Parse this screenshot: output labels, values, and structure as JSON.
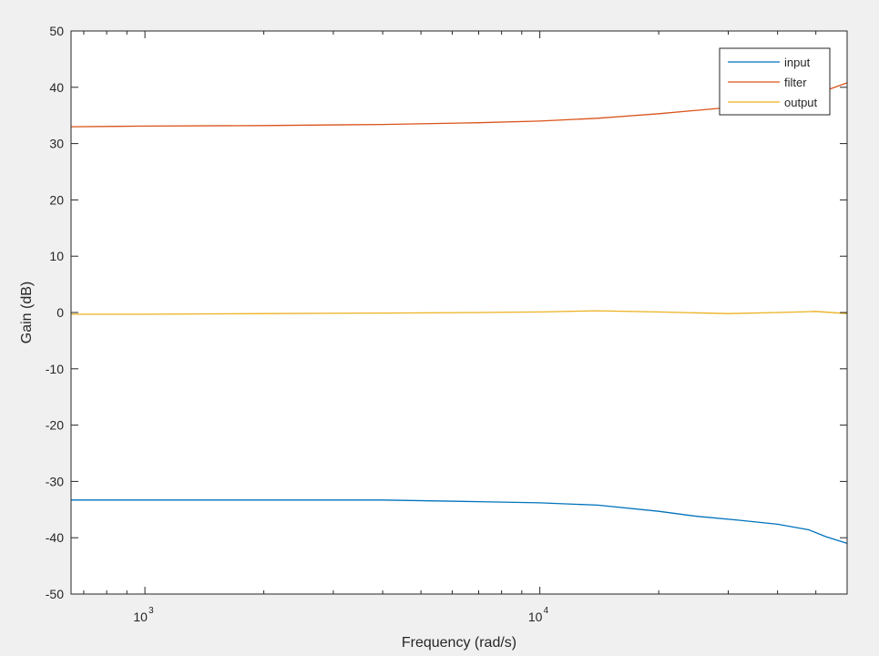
{
  "chart_data": {
    "type": "line",
    "xlabel": "Frequency (rad/s)",
    "ylabel": "Gain (dB)",
    "xscale": "log",
    "xlim": [
      650,
      60000
    ],
    "ylim": [
      -50,
      50
    ],
    "grid": false,
    "legend_position": "top-right",
    "yticks": [
      -50,
      -40,
      -30,
      -20,
      -10,
      0,
      10,
      20,
      30,
      40,
      50
    ],
    "ytick_labels": [
      "-50",
      "-40",
      "-30",
      "-20",
      "-10",
      "0",
      "10",
      "20",
      "30",
      "40",
      "50"
    ],
    "xticks": [
      {
        "value": 1000,
        "base": "10",
        "exponent": "3"
      },
      {
        "value": 10000,
        "base": "10",
        "exponent": "4"
      }
    ],
    "series": [
      {
        "name": "input",
        "color": "#0072bd",
        "points": [
          [
            650,
            -33.3
          ],
          [
            1000,
            -33.3
          ],
          [
            2000,
            -33.3
          ],
          [
            4000,
            -33.3
          ],
          [
            7000,
            -33.6
          ],
          [
            10000,
            -33.8
          ],
          [
            14000,
            -34.2
          ],
          [
            20000,
            -35.3
          ],
          [
            25000,
            -36.2
          ],
          [
            32000,
            -36.9
          ],
          [
            40000,
            -37.6
          ],
          [
            48000,
            -38.6
          ],
          [
            53000,
            -39.8
          ],
          [
            60000,
            -41.0
          ]
        ]
      },
      {
        "name": "filter",
        "color": "#d95319",
        "points": [
          [
            650,
            33.0
          ],
          [
            1000,
            33.1
          ],
          [
            2000,
            33.2
          ],
          [
            4000,
            33.4
          ],
          [
            7000,
            33.7
          ],
          [
            10000,
            34.0
          ],
          [
            14000,
            34.5
          ],
          [
            20000,
            35.3
          ],
          [
            30000,
            36.4
          ],
          [
            40000,
            37.4
          ],
          [
            50000,
            38.8
          ],
          [
            60000,
            40.8
          ]
        ]
      },
      {
        "name": "output",
        "color": "#edb120",
        "points": [
          [
            650,
            -0.3
          ],
          [
            1000,
            -0.3
          ],
          [
            2000,
            -0.2
          ],
          [
            4000,
            -0.1
          ],
          [
            7000,
            0.0
          ],
          [
            10000,
            0.1
          ],
          [
            14000,
            0.3
          ],
          [
            20000,
            0.1
          ],
          [
            30000,
            -0.2
          ],
          [
            40000,
            0.0
          ],
          [
            50000,
            0.2
          ],
          [
            60000,
            -0.2
          ]
        ]
      }
    ]
  }
}
